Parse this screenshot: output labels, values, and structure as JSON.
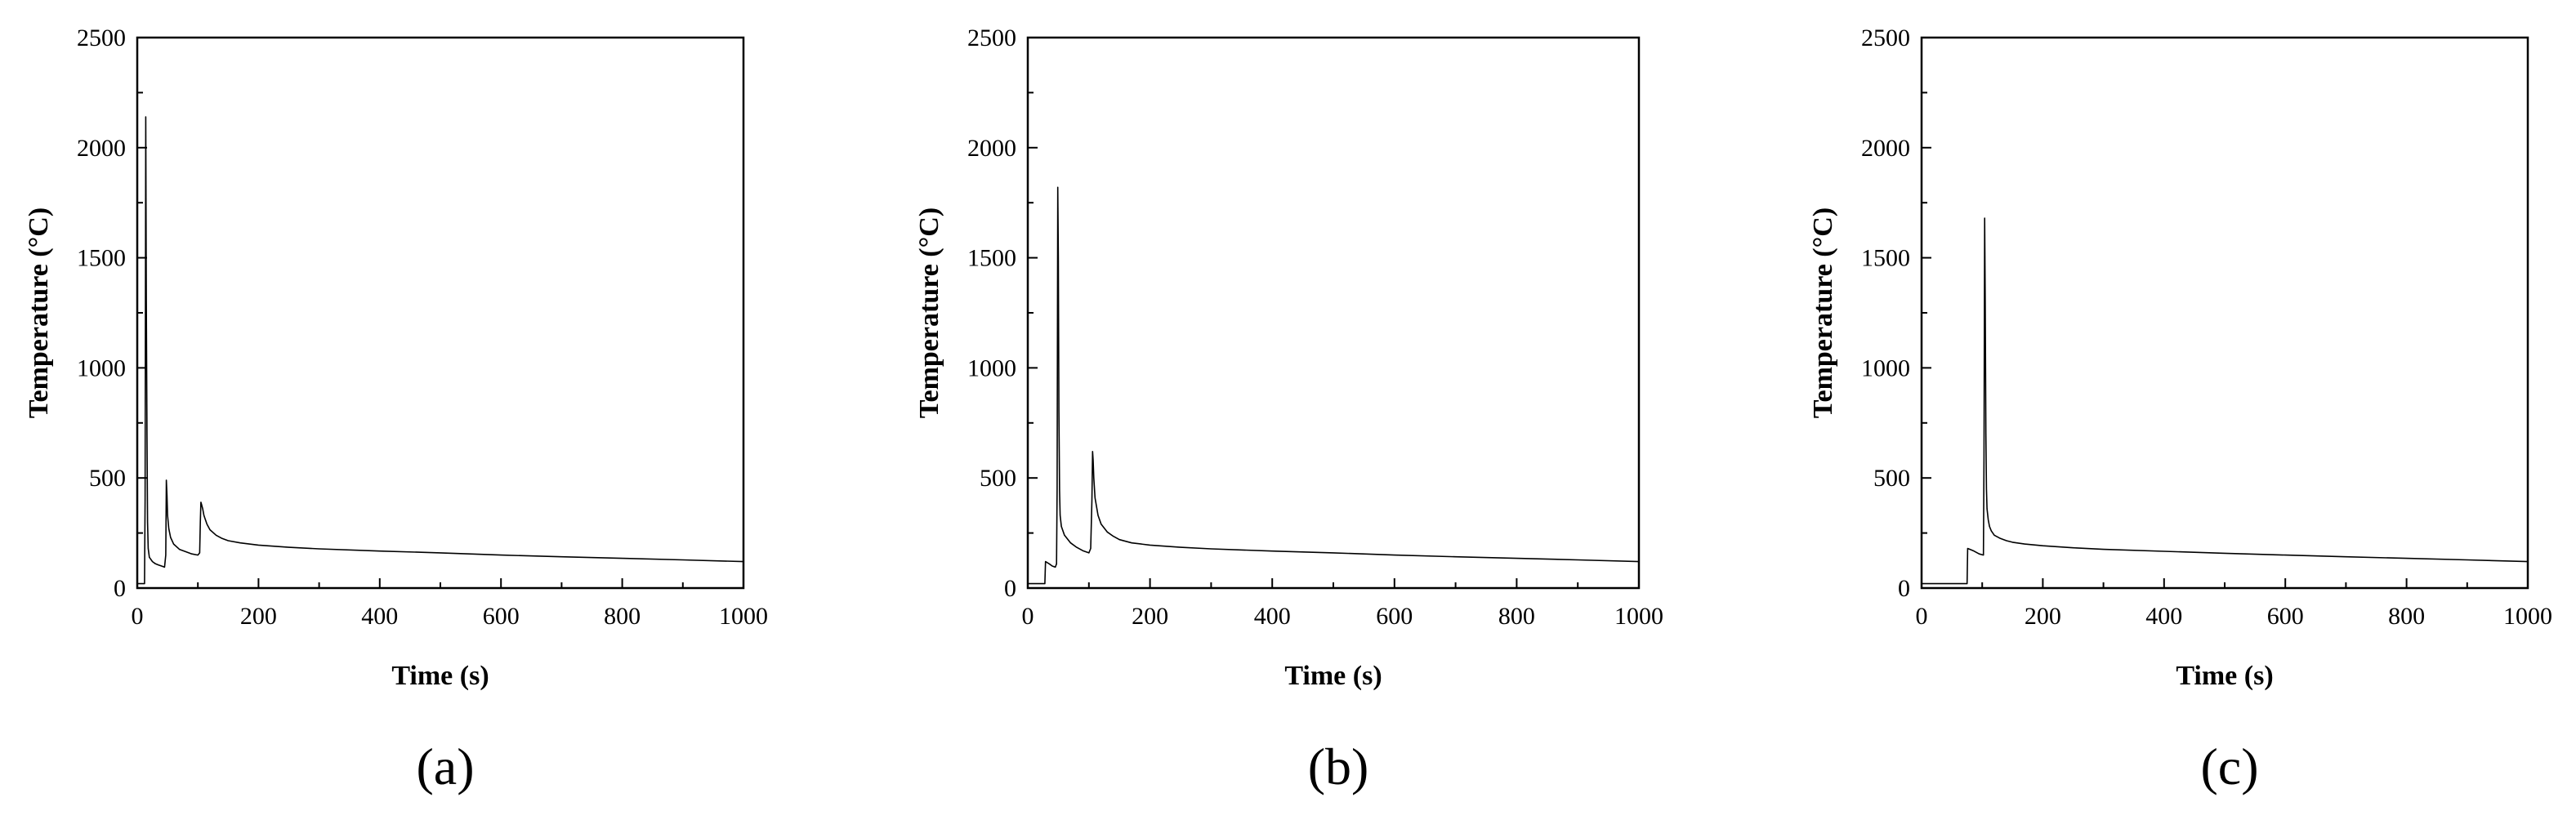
{
  "chart_data": [
    {
      "type": "line",
      "panel_label": "(a)",
      "xlabel": "Time (s)",
      "ylabel": "Temperature (°C)",
      "xlim": [
        0,
        1000
      ],
      "ylim": [
        0,
        2500
      ],
      "xticks": [
        0,
        200,
        400,
        600,
        800,
        1000
      ],
      "yticks": [
        0,
        500,
        1000,
        1500,
        2000,
        2500
      ],
      "grid": false,
      "series": [
        {
          "x": [
            0,
            12,
            13,
            14,
            15,
            16,
            17,
            18,
            20,
            25,
            30,
            35,
            40,
            45,
            47,
            48,
            49,
            50,
            52,
            55,
            60,
            70,
            80,
            90,
            100,
            103,
            104,
            105,
            106,
            108,
            110,
            115,
            120,
            130,
            140,
            150,
            170,
            200,
            250,
            300,
            400,
            500,
            600,
            700,
            800,
            900,
            1000
          ],
          "y": [
            20,
            20,
            400,
            2140,
            1300,
            700,
            300,
            180,
            140,
            120,
            110,
            105,
            100,
            95,
            150,
            490,
            420,
            330,
            270,
            230,
            200,
            175,
            165,
            155,
            150,
            160,
            300,
            390,
            380,
            360,
            330,
            290,
            265,
            240,
            225,
            215,
            205,
            195,
            185,
            178,
            168,
            160,
            150,
            142,
            135,
            128,
            120
          ]
        }
      ]
    },
    {
      "type": "line",
      "panel_label": "(b)",
      "xlabel": "Time (s)",
      "ylabel": "Temperature (°C)",
      "xlim": [
        0,
        1000
      ],
      "ylim": [
        0,
        2500
      ],
      "xticks": [
        0,
        200,
        400,
        600,
        800,
        1000
      ],
      "yticks": [
        0,
        500,
        1000,
        1500,
        2000,
        2500
      ],
      "grid": false,
      "series": [
        {
          "x": [
            0,
            28,
            29,
            35,
            40,
            45,
            47,
            48,
            49,
            50,
            51,
            52,
            53,
            55,
            60,
            70,
            80,
            90,
            100,
            103,
            105,
            106,
            107,
            108,
            110,
            115,
            120,
            130,
            140,
            150,
            170,
            200,
            250,
            300,
            400,
            500,
            600,
            700,
            800,
            900,
            1000
          ],
          "y": [
            20,
            20,
            120,
            110,
            100,
            95,
            110,
            450,
            1820,
            1500,
            800,
            440,
            330,
            280,
            240,
            205,
            185,
            170,
            160,
            180,
            400,
            620,
            580,
            500,
            410,
            330,
            290,
            255,
            235,
            220,
            205,
            195,
            185,
            178,
            168,
            160,
            150,
            142,
            135,
            128,
            120
          ]
        }
      ]
    },
    {
      "type": "line",
      "panel_label": "(c)",
      "xlabel": "Time (s)",
      "ylabel": "Temperature (°C)",
      "xlim": [
        0,
        1000
      ],
      "ylim": [
        0,
        2500
      ],
      "xticks": [
        0,
        200,
        400,
        600,
        800,
        1000
      ],
      "yticks": [
        0,
        500,
        1000,
        1500,
        2000,
        2500
      ],
      "grid": false,
      "series": [
        {
          "x": [
            0,
            75,
            76,
            85,
            95,
            102,
            103,
            104,
            105,
            106,
            107,
            108,
            110,
            112,
            115,
            120,
            130,
            140,
            150,
            170,
            200,
            250,
            300,
            400,
            500,
            600,
            700,
            800,
            900,
            1000
          ],
          "y": [
            20,
            20,
            180,
            170,
            155,
            150,
            600,
            1680,
            1300,
            700,
            450,
            360,
            310,
            280,
            260,
            240,
            225,
            215,
            208,
            200,
            192,
            183,
            176,
            167,
            158,
            150,
            142,
            135,
            128,
            120
          ]
        }
      ]
    }
  ]
}
